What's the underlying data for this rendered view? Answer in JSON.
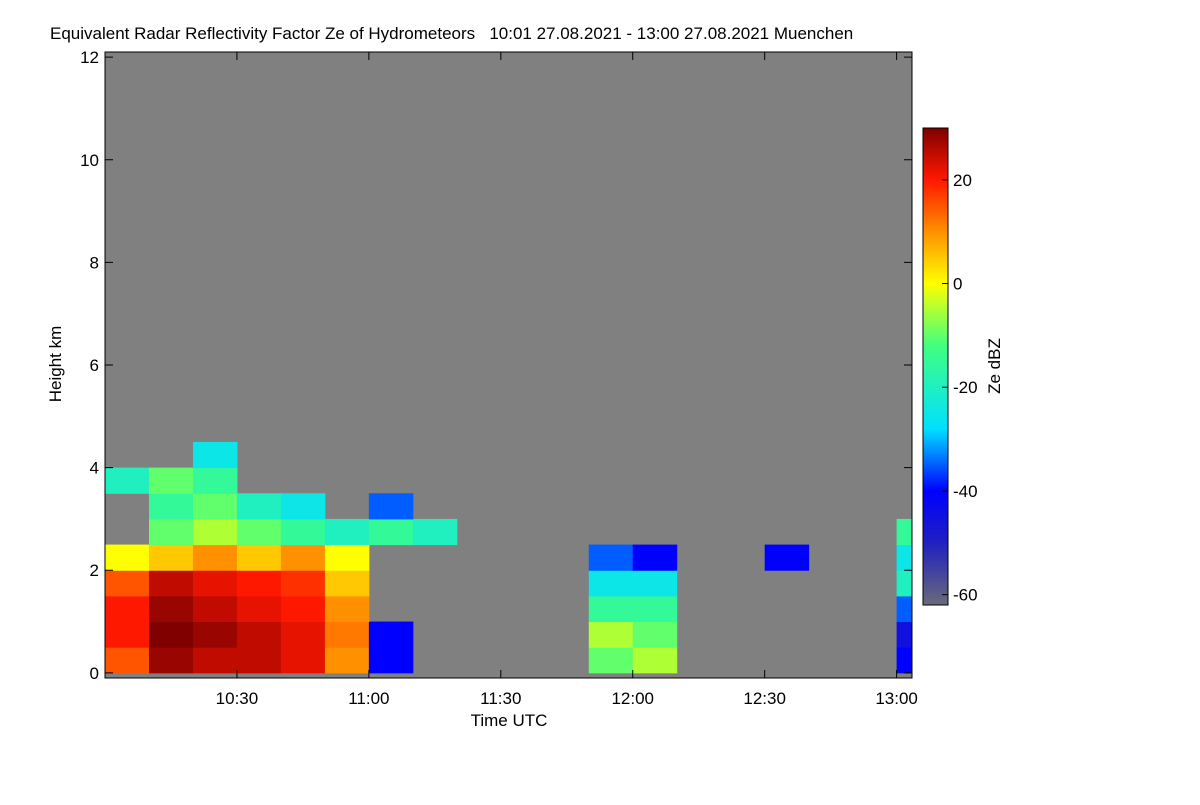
{
  "chart_data": {
    "type": "heatmap",
    "title": "Equivalent Radar Reflectivity Factor Ze of Hydrometeors   10:01 27.08.2021 - 13:00 27.08.2021 Muenchen",
    "xlabel": "Time UTC",
    "ylabel": "Height km",
    "colorbar_label": "Ze dBZ",
    "x": [
      600,
      610,
      620,
      630,
      640,
      650,
      660,
      670,
      680,
      690,
      700,
      710,
      720,
      730,
      740,
      750,
      760,
      770,
      780,
      783.5
    ],
    "y": [
      0,
      0.5,
      1,
      1.5,
      2,
      2.5,
      3,
      3.5,
      4,
      4.5
    ],
    "z": [
      [
        15,
        28,
        25,
        25,
        22,
        10,
        -40,
        null,
        null,
        null,
        null,
        -10,
        -5,
        null,
        null,
        null,
        null,
        null,
        -40
      ],
      [
        20,
        30,
        28,
        25,
        22,
        12,
        -40,
        null,
        null,
        null,
        null,
        -5,
        -10,
        null,
        null,
        null,
        null,
        null,
        -45
      ],
      [
        20,
        28,
        25,
        22,
        20,
        10,
        null,
        null,
        null,
        null,
        null,
        -15,
        -15,
        null,
        null,
        null,
        null,
        null,
        -35
      ],
      [
        15,
        25,
        22,
        20,
        18,
        5,
        null,
        null,
        null,
        null,
        null,
        -25,
        -25,
        null,
        null,
        null,
        null,
        null,
        -20
      ],
      [
        0,
        5,
        10,
        5,
        10,
        0,
        null,
        null,
        null,
        null,
        null,
        -35,
        -40,
        null,
        null,
        -40,
        null,
        null,
        -25
      ],
      [
        null,
        -10,
        -5,
        -10,
        -15,
        -20,
        -15,
        -20,
        null,
        null,
        null,
        null,
        null,
        null,
        null,
        null,
        null,
        null,
        -15
      ],
      [
        null,
        -15,
        -10,
        -20,
        -25,
        null,
        -35,
        null,
        null,
        null,
        null,
        null,
        null,
        null,
        null,
        null,
        null,
        null,
        null
      ],
      [
        -20,
        -10,
        -15,
        null,
        null,
        null,
        null,
        null,
        null,
        null,
        null,
        null,
        null,
        null,
        null,
        null,
        null,
        null,
        null
      ],
      [
        null,
        null,
        -25,
        null,
        null,
        null,
        null,
        null,
        null,
        null,
        null,
        null,
        null,
        null,
        null,
        null,
        null,
        null,
        null
      ]
    ],
    "xlim": [
      600,
      783.5
    ],
    "xticks": [
      {
        "value": 630,
        "label": "10:30"
      },
      {
        "value": 660,
        "label": "11:00"
      },
      {
        "value": 690,
        "label": "11:30"
      },
      {
        "value": 720,
        "label": "12:00"
      },
      {
        "value": 750,
        "label": "12:30"
      },
      {
        "value": 780,
        "label": "13:00"
      }
    ],
    "ylim": [
      -0.1,
      12.1
    ],
    "yticks": [
      0,
      2,
      4,
      6,
      8,
      10,
      12
    ],
    "zlim": [
      -62,
      30
    ],
    "zticks": [
      -60,
      -40,
      -20,
      0,
      20
    ],
    "background": "#808080",
    "colorscale": [
      [
        -62,
        "#6a6a7a"
      ],
      [
        -50,
        "#2020c0"
      ],
      [
        -40,
        "#0000ff"
      ],
      [
        -28,
        "#00e0ff"
      ],
      [
        -12,
        "#40ff80"
      ],
      [
        0,
        "#ffff00"
      ],
      [
        10,
        "#ff9000"
      ],
      [
        20,
        "#ff1800"
      ],
      [
        30,
        "#800000"
      ]
    ]
  }
}
